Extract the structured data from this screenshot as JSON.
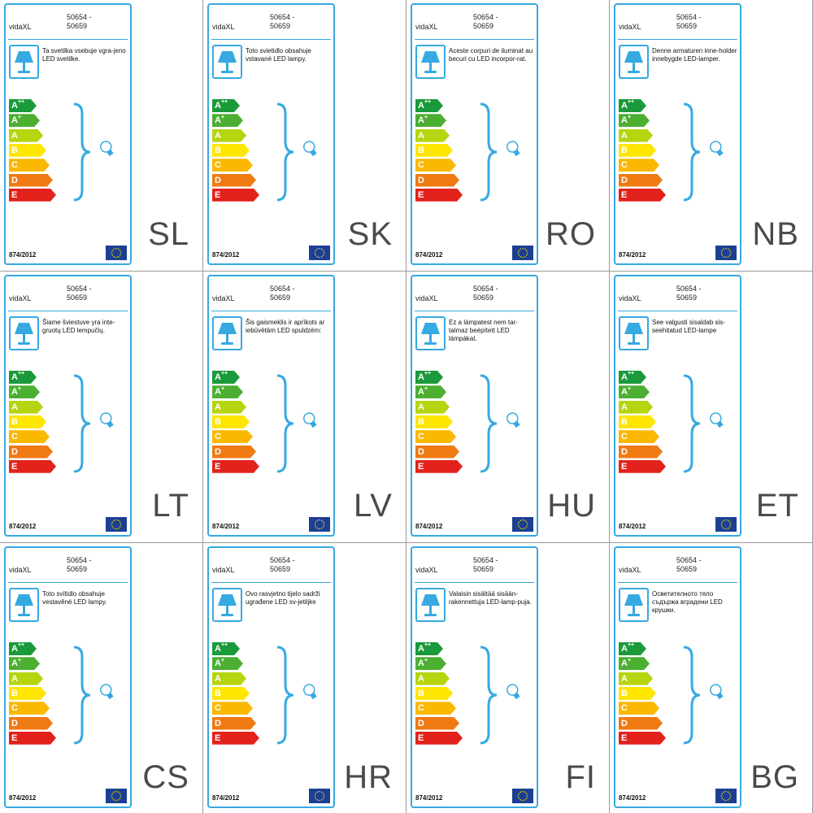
{
  "common": {
    "brand": "vidaXL",
    "model_line1": "50654 -",
    "model_line2": "50659",
    "regulation": "874/2012",
    "energy_classes": [
      {
        "main": "A",
        "sup": "++",
        "color": "#1a9a3a"
      },
      {
        "main": "A",
        "sup": "+",
        "color": "#4caf32"
      },
      {
        "main": "A",
        "sup": "",
        "color": "#b6d40f"
      },
      {
        "main": "B",
        "sup": "",
        "color": "#ffe600"
      },
      {
        "main": "C",
        "sup": "",
        "color": "#fbb800"
      },
      {
        "main": "D",
        "sup": "",
        "color": "#f07a12"
      },
      {
        "main": "E",
        "sup": "",
        "color": "#e3221b"
      }
    ],
    "accent_color": "#36a9e1"
  },
  "labels": [
    {
      "code": "SL",
      "text": "Ta svetilka vsebuje vgra-jeno LED svetilke."
    },
    {
      "code": "SK",
      "text": "Toto svietidlo obsahuje vstavané LED lampy."
    },
    {
      "code": "RO",
      "text": "Aceste corpuri de iluminat au becuri cu LED incorpor-rat."
    },
    {
      "code": "NB",
      "text": "Denne armaturen inne-holder innebygde LED-lamper."
    },
    {
      "code": "LT",
      "text": "Šiame šviestuve yra inte-gruotų LED lempučių."
    },
    {
      "code": "LV",
      "text": "Šis gaismeklis ir aprīkots ar iebūvētām LED spuldzēm:"
    },
    {
      "code": "HU",
      "text": "Ez a lámpatest nem tar-talmaz beépített LED lámpákat."
    },
    {
      "code": "ET",
      "text": "See valgusti sisaldab sis-seehitatud LED-lampe"
    },
    {
      "code": "CS",
      "text": "Toto svítidlo obsahuje vestavěné LED lampy."
    },
    {
      "code": "HR",
      "text": "Ovo rasvjetno tijelo sadrži ugrađene LED sv-jetiljke"
    },
    {
      "code": "FI",
      "text": "Valaisin sisältää sisään-rakennettuja LED-lamp-puja."
    },
    {
      "code": "BG",
      "text": "Осветителното тяло съдържа вградени LED крушки."
    }
  ]
}
